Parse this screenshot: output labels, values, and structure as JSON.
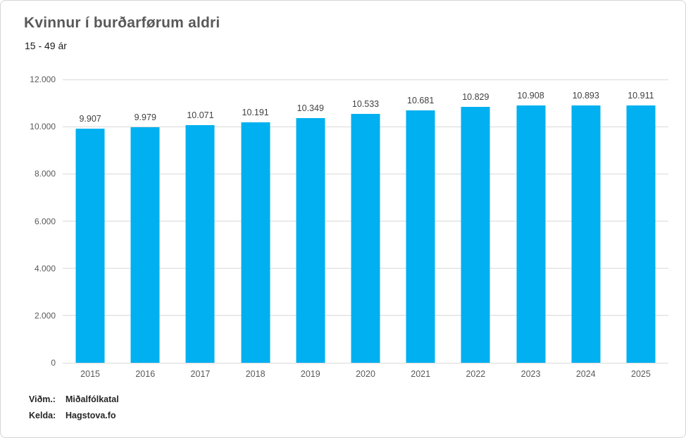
{
  "header": {
    "title": "Kvinnur í burðarførum aldri",
    "subtitle": "15 - 49 ár"
  },
  "chart_data": {
    "type": "bar",
    "title": "Kvinnur í burðarførum aldri",
    "subtitle": "15 - 49 ár",
    "categories": [
      "2015",
      "2016",
      "2017",
      "2018",
      "2019",
      "2020",
      "2021",
      "2022",
      "2023",
      "2024",
      "2025"
    ],
    "values": [
      9907,
      9979,
      10071,
      10191,
      10349,
      10533,
      10681,
      10829,
      10908,
      10893,
      10911
    ],
    "value_labels": [
      "9.907",
      "9.979",
      "10.071",
      "10.191",
      "10.349",
      "10.533",
      "10.681",
      "10.829",
      "10.908",
      "10.893",
      "10.911"
    ],
    "xlabel": "",
    "ylabel": "",
    "ylim": [
      0,
      12000
    ],
    "ytick_interval": 2000,
    "ytick_labels": [
      "0",
      "2.000",
      "4.000",
      "6.000",
      "8.000",
      "10.000",
      "12.000"
    ],
    "grid": true,
    "legend": "none",
    "bar_color": "#00B0F0"
  },
  "colors": {
    "bar": "#00B0F0",
    "gridline": "#d9d9d9",
    "axis_text": "#595959",
    "data_label_text": "#404040",
    "title_text": "#595959"
  },
  "footer": {
    "rows": [
      {
        "label": "Viðm.:",
        "value": "Miðalfólkatal"
      },
      {
        "label": "Kelda:",
        "value": "Hagstova.fo"
      }
    ]
  }
}
